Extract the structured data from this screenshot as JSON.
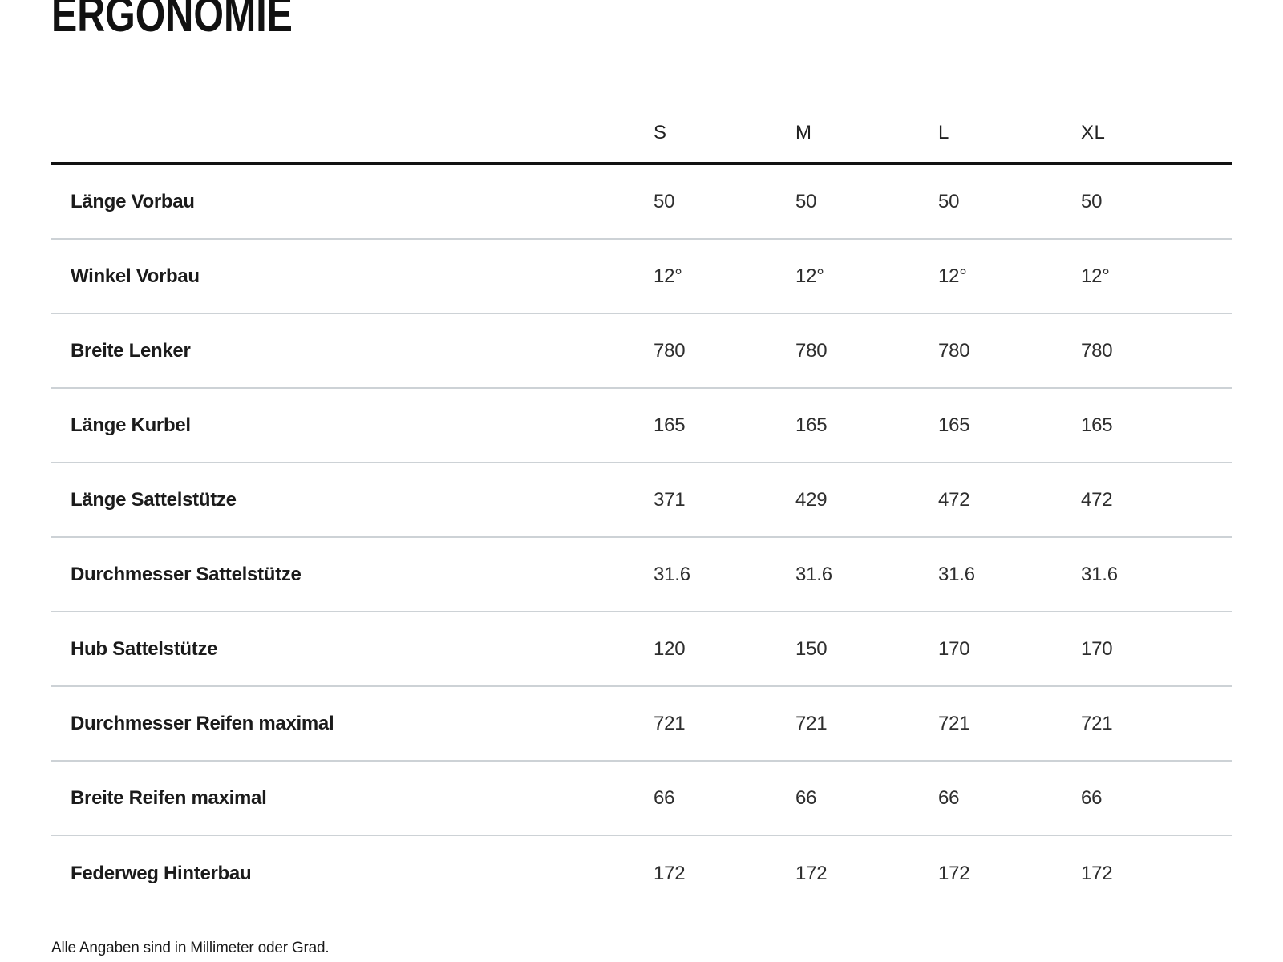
{
  "page": {
    "title": "ERGONOMIE",
    "footnote": "Alle Angaben sind in Millimeter oder Grad."
  },
  "table": {
    "size_headers": [
      "S",
      "M",
      "L",
      "XL"
    ],
    "rows": [
      {
        "label": "Länge Vorbau",
        "values": [
          "50",
          "50",
          "50",
          "50"
        ]
      },
      {
        "label": "Winkel Vorbau",
        "values": [
          "12°",
          "12°",
          "12°",
          "12°"
        ]
      },
      {
        "label": "Breite Lenker",
        "values": [
          "780",
          "780",
          "780",
          "780"
        ]
      },
      {
        "label": "Länge Kurbel",
        "values": [
          "165",
          "165",
          "165",
          "165"
        ]
      },
      {
        "label": "Länge Sattelstütze",
        "values": [
          "371",
          "429",
          "472",
          "472"
        ]
      },
      {
        "label": "Durchmesser Sattelstütze",
        "values": [
          "31.6",
          "31.6",
          "31.6",
          "31.6"
        ]
      },
      {
        "label": "Hub Sattelstütze",
        "values": [
          "120",
          "150",
          "170",
          "170"
        ]
      },
      {
        "label": "Durchmesser Reifen maximal",
        "values": [
          "721",
          "721",
          "721",
          "721"
        ]
      },
      {
        "label": "Breite Reifen maximal",
        "values": [
          "66",
          "66",
          "66",
          "66"
        ]
      },
      {
        "label": "Federweg Hinterbau",
        "values": [
          "172",
          "172",
          "172",
          "172"
        ]
      }
    ]
  },
  "colors": {
    "header_rule": "#111111",
    "row_divider": "#cdd2d6",
    "title_text": "#111111",
    "body_text": "#1b1b1b"
  }
}
